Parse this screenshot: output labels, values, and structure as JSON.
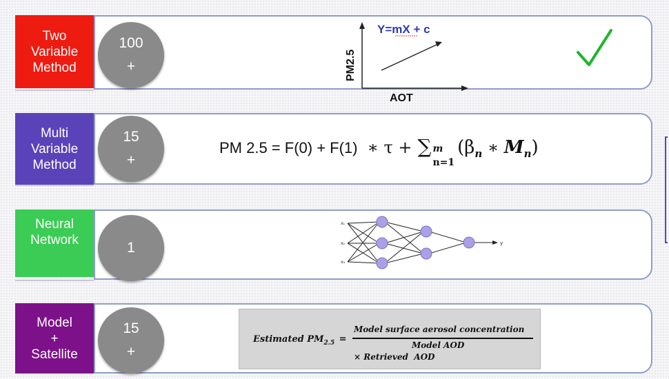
{
  "rows": [
    {
      "label_lines": [
        "Two",
        "Variable",
        "Method"
      ],
      "label_color": "#ee1b11",
      "count": "100",
      "plus": "+"
    },
    {
      "label_lines": [
        "Multi",
        "Variable",
        "Method"
      ],
      "label_color": "#5a43b8",
      "count": "15",
      "plus": "+"
    },
    {
      "label_lines": [
        "Neural",
        "Network"
      ],
      "label_color": "#3bcc55",
      "count": "1",
      "plus": ""
    },
    {
      "label_lines": [
        "Model",
        "+",
        "Satellite"
      ],
      "label_color": "#7d118a",
      "count": "15",
      "plus": "+"
    }
  ],
  "two_variable": {
    "equation": "Y=mX + c",
    "y_axis": "PM2.5",
    "x_axis": "AOT",
    "check_icon": "check-icon",
    "check_color": "#1fb52a"
  },
  "multi_variable": {
    "lhs": "PM 2.5 = F(0) + F(1)",
    "op": "∗ τ +",
    "sum": "∑",
    "sup": "m",
    "sub": "n=1",
    "term_open": "(β",
    "term_sub": "n",
    "term_mid": " ∗ ",
    "term_M": "M",
    "term_Msub": "n",
    "term_close": ")"
  },
  "neural": {
    "node_color": "#a9a0e6",
    "input_marks": [
      "x₁",
      "x₂",
      "x₃"
    ],
    "output_mark": "y"
  },
  "model_satellite": {
    "lhs": "Estimated PM",
    "lhs_sub": "2.5",
    "equals": "=",
    "numerator": "Model surface aerosol concentration",
    "denominator": "Model AOD",
    "times": "× Retrieved  AOD"
  }
}
